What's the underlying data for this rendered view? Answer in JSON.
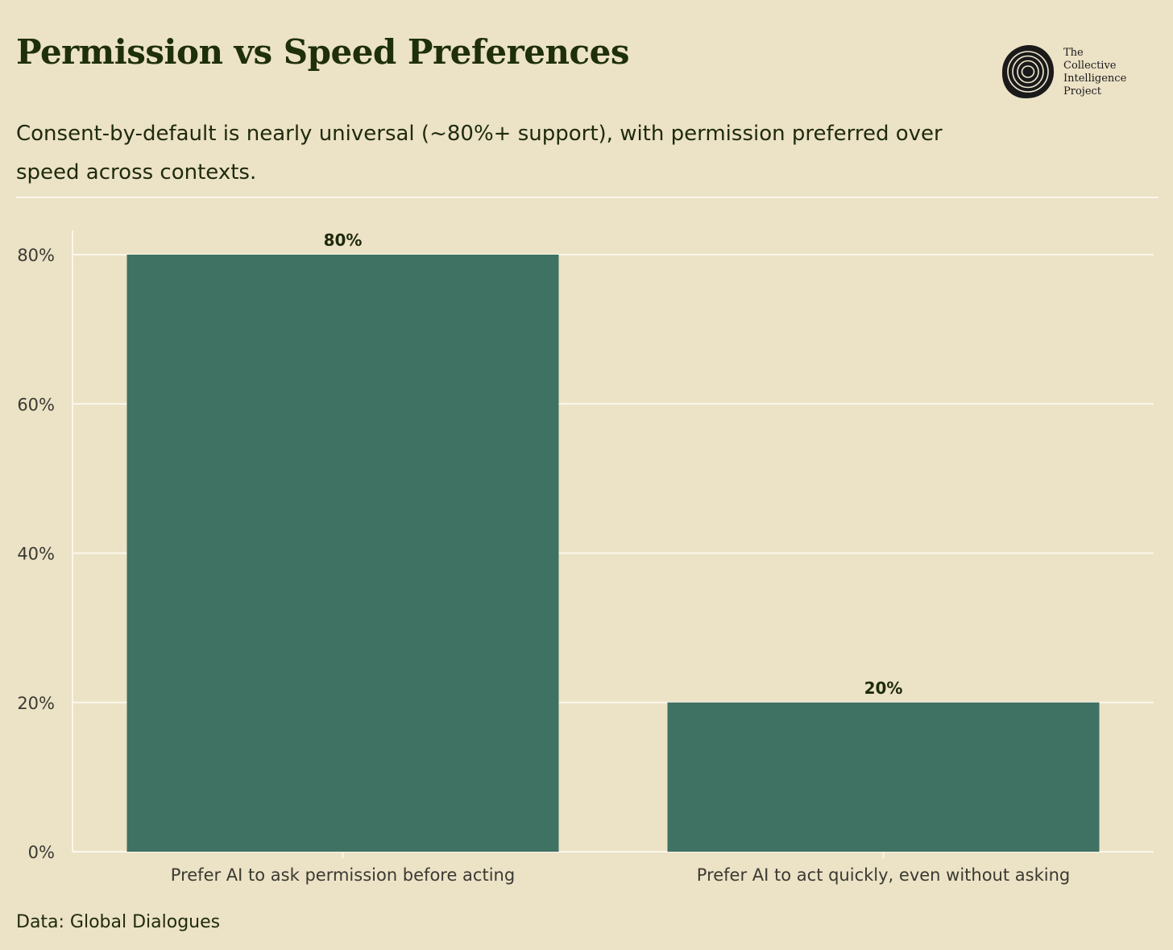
{
  "header": {
    "title": "Permission vs Speed Preferences",
    "subtitle": "Consent-by-default is nearly universal (~80%+ support), with permission preferred over speed across contexts."
  },
  "logo": {
    "icon": "tree-rings-icon",
    "lines": [
      "The",
      "Collective",
      "Intelligence",
      "Project"
    ]
  },
  "footer": {
    "source": "Data: Global Dialogues"
  },
  "colors": {
    "background": "#ece2c6",
    "bar": "#3f7262",
    "gridline": "#fbf7ec",
    "label": "#1e2a0d",
    "axis_text": "#3a3a32"
  },
  "chart_data": {
    "type": "bar",
    "categories": [
      "Prefer AI to ask permission before acting",
      "Prefer AI to act quickly, even without asking"
    ],
    "values": [
      80,
      20
    ],
    "data_labels": [
      "80%",
      "20%"
    ],
    "ylim": [
      0,
      80
    ],
    "yticks": [
      0,
      20,
      40,
      60,
      80
    ],
    "ytick_labels": [
      "0%",
      "20%",
      "40%",
      "60%",
      "80%"
    ],
    "xlabel": "",
    "ylabel": "",
    "grid": true,
    "legend": "none"
  }
}
